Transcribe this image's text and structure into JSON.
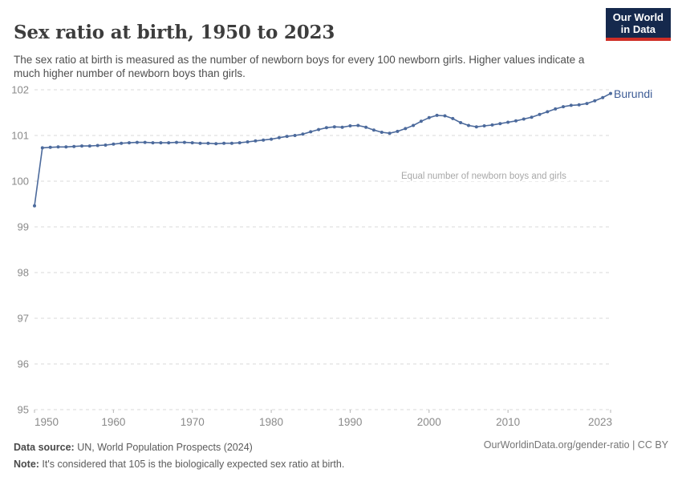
{
  "header": {
    "title": "Sex ratio at birth, 1950 to 2023",
    "subtitle": "The sex ratio at birth is measured as the number of newborn boys for every 100 newborn girls. Higher values indicate a much higher number of newborn boys than girls."
  },
  "logo": {
    "line1": "Our World",
    "line2": "in Data",
    "bg": "#15294d",
    "accent": "#cf2e26"
  },
  "chart_data": {
    "type": "line",
    "title": "Sex ratio at birth, 1950 to 2023",
    "entity": "Burundi",
    "line_color": "#4c6a9c",
    "grid": "horizontal-dashed",
    "legend_position": "end-of-line-label",
    "xlim": [
      1950,
      2023
    ],
    "ylim": [
      95,
      102
    ],
    "yticks": [
      95,
      96,
      97,
      98,
      99,
      100,
      101,
      102
    ],
    "xticks": [
      1950,
      1960,
      1970,
      1980,
      1990,
      2000,
      2010,
      2023
    ],
    "annotation": {
      "text": "Equal number of newborn boys and girls",
      "y": 100
    },
    "x": [
      1950,
      1951,
      1952,
      1953,
      1954,
      1955,
      1956,
      1957,
      1958,
      1959,
      1960,
      1961,
      1962,
      1963,
      1964,
      1965,
      1966,
      1967,
      1968,
      1969,
      1970,
      1971,
      1972,
      1973,
      1974,
      1975,
      1976,
      1977,
      1978,
      1979,
      1980,
      1981,
      1982,
      1983,
      1984,
      1985,
      1986,
      1987,
      1988,
      1989,
      1990,
      1991,
      1992,
      1993,
      1994,
      1995,
      1996,
      1997,
      1998,
      1999,
      2000,
      2001,
      2002,
      2003,
      2004,
      2005,
      2006,
      2007,
      2008,
      2009,
      2010,
      2011,
      2012,
      2013,
      2014,
      2015,
      2016,
      2017,
      2018,
      2019,
      2020,
      2021,
      2022,
      2023
    ],
    "values": [
      99.46,
      100.73,
      100.74,
      100.75,
      100.75,
      100.76,
      100.77,
      100.77,
      100.78,
      100.79,
      100.81,
      100.83,
      100.84,
      100.85,
      100.85,
      100.84,
      100.84,
      100.84,
      100.85,
      100.85,
      100.84,
      100.83,
      100.83,
      100.82,
      100.83,
      100.83,
      100.84,
      100.86,
      100.88,
      100.9,
      100.92,
      100.95,
      100.98,
      101.0,
      101.03,
      101.08,
      101.13,
      101.17,
      101.19,
      101.18,
      101.21,
      101.22,
      101.18,
      101.12,
      101.07,
      101.05,
      101.09,
      101.15,
      101.22,
      101.31,
      101.39,
      101.44,
      101.43,
      101.37,
      101.28,
      101.22,
      101.19,
      101.21,
      101.23,
      101.26,
      101.29,
      101.32,
      101.36,
      101.4,
      101.46,
      101.52,
      101.58,
      101.63,
      101.66,
      101.67,
      101.7,
      101.76,
      101.83,
      101.92
    ]
  },
  "footer": {
    "source_label": "Data source:",
    "source_text": " UN, World Population Prospects (2024)",
    "note_label": "Note:",
    "note_text": " It's considered that 105 is the biologically expected sex ratio at birth.",
    "link": "OurWorldinData.org/gender-ratio | CC BY"
  }
}
